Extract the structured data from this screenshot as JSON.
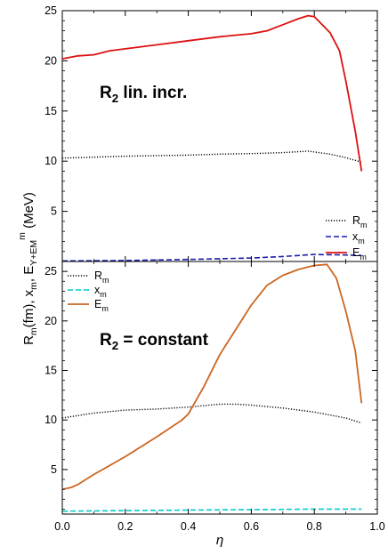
{
  "figure": {
    "ylabel_parts": {
      "r": "R",
      "r_sub": "m",
      "r_unit": "(fm), x",
      "x_sub": "m",
      "e_mid": ", E",
      "e_sub": "Y+EM",
      "e_sup": "m",
      "e_unit": " (MeV)"
    },
    "xlabel": "η"
  },
  "chart_data": [
    {
      "type": "line",
      "panel": "top",
      "title": "",
      "annotation": {
        "main": "R",
        "sub": "2",
        "rest": " lin. incr."
      },
      "xlim": [
        0.0,
        1.0
      ],
      "ylim": [
        0,
        25
      ],
      "yticks": [
        5,
        10,
        15,
        20,
        25
      ],
      "yticklabels": [
        "5",
        "10",
        "15",
        "20",
        "25"
      ],
      "legend_position": "lower-right",
      "series": [
        {
          "name": "R",
          "name_sub": "m",
          "color": "#000000",
          "style": "dotted",
          "x": [
            0.0,
            0.1,
            0.2,
            0.3,
            0.4,
            0.5,
            0.6,
            0.7,
            0.78,
            0.85,
            0.9,
            0.95
          ],
          "y": [
            10.3,
            10.4,
            10.5,
            10.55,
            10.6,
            10.7,
            10.75,
            10.85,
            11.0,
            10.7,
            10.35,
            9.9
          ]
        },
        {
          "name": "x",
          "name_sub": "m",
          "color": "#1a1ab3",
          "style": "dashed",
          "x": [
            0.0,
            0.2,
            0.4,
            0.6,
            0.7,
            0.8,
            0.9,
            0.95
          ],
          "y": [
            0.05,
            0.1,
            0.2,
            0.35,
            0.5,
            0.7,
            0.65,
            0.6
          ]
        },
        {
          "name": "E",
          "name_sub": "m",
          "color": "#dd1111",
          "style": "solid",
          "x": [
            0.0,
            0.05,
            0.1,
            0.15,
            0.2,
            0.3,
            0.4,
            0.5,
            0.6,
            0.65,
            0.7,
            0.75,
            0.78,
            0.8,
            0.85,
            0.88,
            0.9,
            0.93,
            0.95
          ],
          "y": [
            20.2,
            20.5,
            20.6,
            21.0,
            21.2,
            21.6,
            22.0,
            22.4,
            22.7,
            23.0,
            23.6,
            24.2,
            24.5,
            24.4,
            22.8,
            21.0,
            18.0,
            13.0,
            9.0
          ]
        }
      ]
    },
    {
      "type": "line",
      "panel": "bottom",
      "title": "",
      "annotation": {
        "main": "R",
        "sub": "2",
        "rest": " = constant"
      },
      "xlim": [
        0.0,
        1.0
      ],
      "xticks": [
        0.0,
        0.2,
        0.4,
        0.6,
        0.8,
        1.0
      ],
      "xticklabels": [
        "0.0",
        "0.2",
        "0.4",
        "0.6",
        "0.8",
        "1.0"
      ],
      "ylim": [
        0.5,
        26
      ],
      "yticks": [
        5,
        10,
        15,
        20,
        25
      ],
      "yticklabels": [
        "5",
        "10",
        "15",
        "20",
        "25"
      ],
      "legend_position": "top-left",
      "series": [
        {
          "name": "R",
          "name_sub": "m",
          "color": "#000000",
          "style": "dotted",
          "x": [
            0.0,
            0.1,
            0.2,
            0.3,
            0.4,
            0.5,
            0.55,
            0.6,
            0.7,
            0.8,
            0.9,
            0.95
          ],
          "y": [
            10.2,
            10.7,
            11.0,
            11.1,
            11.3,
            11.6,
            11.6,
            11.5,
            11.2,
            10.8,
            10.2,
            9.7
          ]
        },
        {
          "name": "x",
          "name_sub": "m",
          "color": "#00cccc",
          "style": "dashed",
          "x": [
            0.0,
            0.2,
            0.4,
            0.6,
            0.8,
            0.95
          ],
          "y": [
            0.8,
            0.85,
            0.9,
            0.95,
            1.0,
            1.0
          ]
        },
        {
          "name": "E",
          "name_sub": "m",
          "color": "#cc6622",
          "style": "solid",
          "x": [
            0.0,
            0.03,
            0.05,
            0.1,
            0.2,
            0.3,
            0.38,
            0.4,
            0.45,
            0.5,
            0.6,
            0.65,
            0.7,
            0.75,
            0.8,
            0.84,
            0.87,
            0.9,
            0.93,
            0.95
          ],
          "y": [
            3.0,
            3.2,
            3.5,
            4.5,
            6.3,
            8.3,
            10.0,
            10.6,
            13.4,
            16.6,
            21.6,
            23.6,
            24.6,
            25.2,
            25.6,
            25.7,
            24.3,
            21.0,
            17.0,
            11.7
          ]
        }
      ]
    }
  ]
}
